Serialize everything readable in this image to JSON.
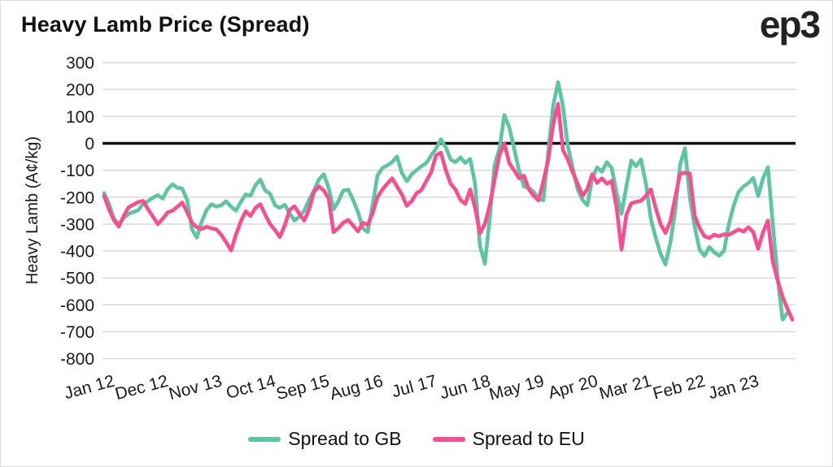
{
  "header": {
    "title": "Heavy Lamb Price (Spread)",
    "logo": "ep3"
  },
  "colors": {
    "gb_line": "#5CC5A1",
    "eu_line": "#FA4D8F",
    "grid": "#d9d9d9",
    "zero_line": "#111111",
    "text": "#1a1a1a"
  },
  "chart_data": {
    "type": "line",
    "title": "Heavy Lamb Price (Spread)",
    "ylabel": "Heavy Lamb (A¢/kg)",
    "ylim": [
      -800,
      300
    ],
    "ytick_step": 100,
    "y_tick_labels": [
      "300",
      "200",
      "100",
      "0",
      "-100",
      "-200",
      "-300",
      "-400",
      "-500",
      "-600",
      "-700",
      "-800"
    ],
    "x_tick_labels": [
      "Jan 12",
      "Dec 12",
      "Nov 13",
      "Oct 14",
      "Sep 15",
      "Aug 16",
      "Jul 17",
      "Jun 18",
      "May 19",
      "Apr 20",
      "Mar 21",
      "Feb 22",
      "Jan 23"
    ],
    "x_tick_interval_months": 11,
    "x_unit": "monthly from Jan 2012",
    "grid": "horizontal",
    "zero_line": true,
    "legend_position": "bottom",
    "series": [
      {
        "name": "Spread to GB",
        "color": "#5CC5A1",
        "values": [
          -185,
          -225,
          -280,
          -300,
          -278,
          -262,
          -255,
          -248,
          -225,
          -215,
          -202,
          -193,
          -205,
          -171,
          -152,
          -165,
          -168,
          -210,
          -320,
          -350,
          -290,
          -248,
          -226,
          -235,
          -230,
          -215,
          -235,
          -250,
          -218,
          -190,
          -195,
          -155,
          -135,
          -175,
          -187,
          -230,
          -240,
          -228,
          -260,
          -287,
          -272,
          -250,
          -210,
          -175,
          -135,
          -115,
          -165,
          -245,
          -215,
          -175,
          -172,
          -210,
          -255,
          -315,
          -330,
          -230,
          -120,
          -92,
          -82,
          -70,
          -49,
          -110,
          -141,
          -115,
          -100,
          -85,
          -73,
          -45,
          -20,
          15,
          -15,
          -60,
          -70,
          -52,
          -73,
          -58,
          -150,
          -380,
          -448,
          -280,
          -80,
          -20,
          105,
          60,
          -20,
          -100,
          -160,
          -165,
          -180,
          -205,
          -212,
          -30,
          140,
          227,
          140,
          -10,
          -90,
          -170,
          -210,
          -230,
          -130,
          -90,
          -105,
          -70,
          -92,
          -185,
          -262,
          -160,
          -64,
          -85,
          -60,
          -150,
          -280,
          -350,
          -410,
          -450,
          -370,
          -250,
          -80,
          -18,
          -200,
          -310,
          -395,
          -418,
          -385,
          -405,
          -417,
          -400,
          -300,
          -230,
          -180,
          -160,
          -148,
          -128,
          -196,
          -130,
          -89,
          -300,
          -500,
          -655,
          -630
        ]
      },
      {
        "name": "Spread to EU",
        "color": "#FA4D8F",
        "values": [
          -195,
          -245,
          -285,
          -309,
          -270,
          -238,
          -228,
          -218,
          -214,
          -245,
          -272,
          -300,
          -280,
          -257,
          -250,
          -236,
          -220,
          -255,
          -295,
          -312,
          -318,
          -310,
          -316,
          -320,
          -340,
          -368,
          -398,
          -340,
          -290,
          -252,
          -270,
          -240,
          -226,
          -265,
          -300,
          -322,
          -348,
          -305,
          -248,
          -234,
          -262,
          -287,
          -245,
          -180,
          -160,
          -175,
          -205,
          -330,
          -315,
          -295,
          -285,
          -305,
          -327,
          -295,
          -303,
          -260,
          -200,
          -172,
          -150,
          -130,
          -160,
          -190,
          -232,
          -215,
          -185,
          -174,
          -140,
          -108,
          -45,
          -34,
          -100,
          -150,
          -172,
          -210,
          -225,
          -171,
          -240,
          -334,
          -300,
          -230,
          -135,
          -43,
          0,
          -73,
          -100,
          -130,
          -120,
          -170,
          -195,
          -212,
          -140,
          -60,
          70,
          147,
          -25,
          -60,
          -107,
          -150,
          -195,
          -170,
          -115,
          -147,
          -130,
          -150,
          -140,
          -240,
          -395,
          -265,
          -223,
          -217,
          -214,
          -195,
          -171,
          -240,
          -300,
          -333,
          -290,
          -200,
          -113,
          -110,
          -112,
          -270,
          -315,
          -345,
          -352,
          -340,
          -345,
          -338,
          -340,
          -330,
          -320,
          -328,
          -312,
          -330,
          -392,
          -330,
          -287,
          -440,
          -510,
          -570,
          -615,
          -655
        ]
      }
    ]
  }
}
